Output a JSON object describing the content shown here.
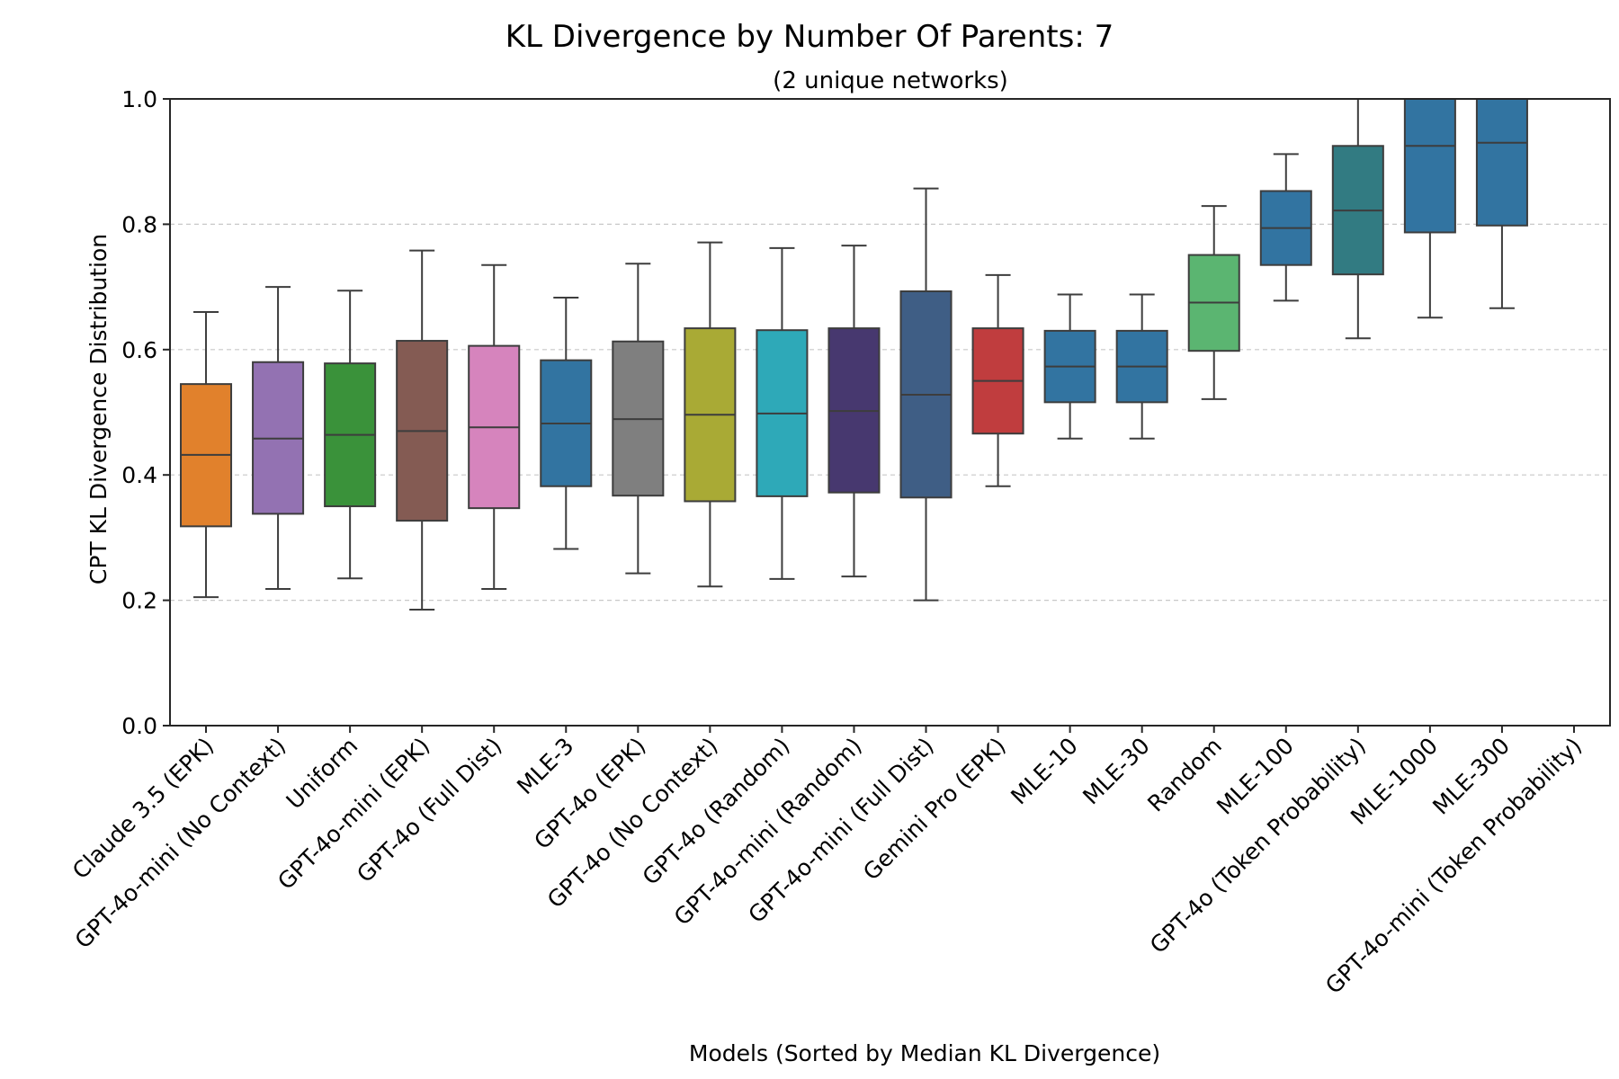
{
  "chart_data": {
    "type": "box",
    "title": "KL Divergence by Number Of Parents: 7",
    "subtitle": "(2 unique networks)",
    "xlabel": "Models (Sorted by Median KL Divergence)",
    "ylabel": "CPT KL Divergence Distribution",
    "ylim": [
      0.0,
      1.0
    ],
    "yticks": [
      0.0,
      0.2,
      0.4,
      0.6,
      0.8,
      1.0
    ],
    "ytick_labels": [
      "0.0",
      "0.2",
      "0.4",
      "0.6",
      "0.8",
      "1.0"
    ],
    "grid": "horizontal dashed",
    "categories": [
      "Claude 3.5 (EPK)",
      "GPT-4o-mini (No Context)",
      "Uniform",
      "GPT-4o-mini (EPK)",
      "GPT-4o (Full Dist)",
      "MLE-3",
      "GPT-4o (EPK)",
      "GPT-4o (No Context)",
      "GPT-4o (Random)",
      "GPT-4o-mini (Random)",
      "GPT-4o-mini (Full Dist)",
      "Gemini Pro (EPK)",
      "MLE-10",
      "MLE-30",
      "Random",
      "MLE-100",
      "GPT-4o (Token Probability)",
      "MLE-1000",
      "MLE-300",
      "GPT-4o-mini (Token Probability)"
    ],
    "boxes": [
      {
        "min": 0.205,
        "q1": 0.318,
        "median": 0.432,
        "q3": 0.545,
        "max": 0.66,
        "color": "#e1812c"
      },
      {
        "min": 0.218,
        "q1": 0.338,
        "median": 0.458,
        "q3": 0.58,
        "max": 0.7,
        "color": "#9372b2"
      },
      {
        "min": 0.235,
        "q1": 0.35,
        "median": 0.464,
        "q3": 0.578,
        "max": 0.694,
        "color": "#3a923a"
      },
      {
        "min": 0.185,
        "q1": 0.327,
        "median": 0.47,
        "q3": 0.614,
        "max": 0.758,
        "color": "#845b53"
      },
      {
        "min": 0.218,
        "q1": 0.347,
        "median": 0.476,
        "q3": 0.606,
        "max": 0.735,
        "color": "#d684bd"
      },
      {
        "min": 0.282,
        "q1": 0.382,
        "median": 0.482,
        "q3": 0.583,
        "max": 0.683,
        "color": "#3274a1"
      },
      {
        "min": 0.243,
        "q1": 0.367,
        "median": 0.489,
        "q3": 0.613,
        "max": 0.737,
        "color": "#7f7f7f"
      },
      {
        "min": 0.222,
        "q1": 0.358,
        "median": 0.496,
        "q3": 0.634,
        "max": 0.771,
        "color": "#a9aa35"
      },
      {
        "min": 0.234,
        "q1": 0.366,
        "median": 0.498,
        "q3": 0.631,
        "max": 0.762,
        "color": "#2ea9b8"
      },
      {
        "min": 0.238,
        "q1": 0.372,
        "median": 0.502,
        "q3": 0.634,
        "max": 0.766,
        "color": "#47386f"
      },
      {
        "min": 0.2,
        "q1": 0.364,
        "median": 0.528,
        "q3": 0.693,
        "max": 0.857,
        "color": "#3f5e85"
      },
      {
        "min": 0.382,
        "q1": 0.466,
        "median": 0.55,
        "q3": 0.634,
        "max": 0.719,
        "color": "#c03d3e"
      },
      {
        "min": 0.458,
        "q1": 0.516,
        "median": 0.573,
        "q3": 0.63,
        "max": 0.688,
        "color": "#3274a1"
      },
      {
        "min": 0.458,
        "q1": 0.516,
        "median": 0.573,
        "q3": 0.63,
        "max": 0.688,
        "color": "#3274a1"
      },
      {
        "min": 0.521,
        "q1": 0.598,
        "median": 0.675,
        "q3": 0.751,
        "max": 0.829,
        "color": "#5bb571"
      },
      {
        "min": 0.678,
        "q1": 0.735,
        "median": 0.794,
        "q3": 0.853,
        "max": 0.912,
        "color": "#3274a1"
      },
      {
        "min": 0.618,
        "q1": 0.72,
        "median": 0.822,
        "q3": 0.925,
        "max": 1.0,
        "color": "#327b82"
      },
      {
        "min": 0.651,
        "q1": 0.787,
        "median": 0.925,
        "q3": 1.0,
        "max": 1.0,
        "color": "#3274a1"
      },
      {
        "min": 0.666,
        "q1": 0.798,
        "median": 0.93,
        "q3": 1.0,
        "max": 1.0,
        "color": "#3274a1"
      },
      null
    ]
  }
}
